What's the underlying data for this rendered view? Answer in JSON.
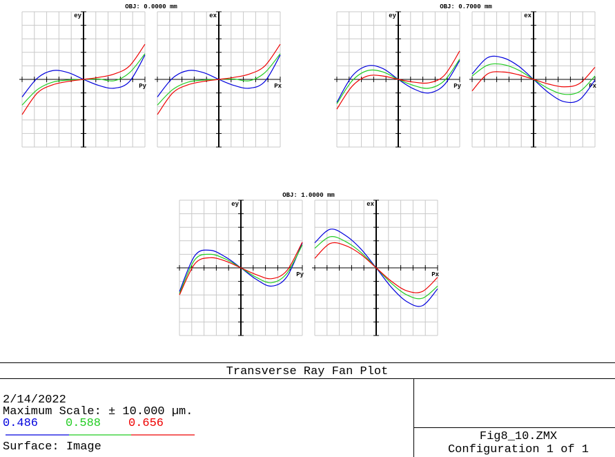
{
  "chart_data": [
    {
      "type": "line",
      "title": "OBJ: 0.0000 mm",
      "ylabel": "ey",
      "xlabel": "Py",
      "x": [
        -1,
        -0.75,
        -0.5,
        -0.25,
        0,
        0.25,
        0.5,
        0.75,
        1
      ],
      "xlim": [
        -1,
        1
      ],
      "xticks": [
        -1,
        -0.8,
        -0.6,
        -0.4,
        -0.2,
        0,
        0.2,
        0.4,
        0.6,
        0.8,
        1
      ],
      "ylim": [
        -10,
        10
      ],
      "yticks": [
        -10,
        -8,
        -6,
        -4,
        -2,
        0,
        2,
        4,
        6,
        8,
        10
      ],
      "grid": true,
      "series": [
        {
          "name": "0.486",
          "color": "#0000dd",
          "values": [
            -2.6,
            0.2,
            1.3,
            1.0,
            0,
            -0.9,
            -1.3,
            -0.3,
            3.6
          ]
        },
        {
          "name": "0.588",
          "color": "#22cc22",
          "values": [
            -3.8,
            -1.5,
            -0.4,
            -0.1,
            0,
            0.05,
            -0.2,
            1.0,
            3.8
          ]
        },
        {
          "name": "0.656",
          "color": "#ee0000",
          "values": [
            -5.2,
            -2.0,
            -0.8,
            -0.3,
            0,
            0.3,
            0.8,
            2.0,
            5.2
          ]
        }
      ]
    },
    {
      "type": "line",
      "ylabel": "ex",
      "xlabel": "Px",
      "x": [
        -1,
        -0.75,
        -0.5,
        -0.25,
        0,
        0.25,
        0.5,
        0.75,
        1
      ],
      "xlim": [
        -1,
        1
      ],
      "xticks": [
        -1,
        -0.8,
        -0.6,
        -0.4,
        -0.2,
        0,
        0.2,
        0.4,
        0.6,
        0.8,
        1
      ],
      "ylim": [
        -10,
        10
      ],
      "yticks": [
        -10,
        -8,
        -6,
        -4,
        -2,
        0,
        2,
        4,
        6,
        8,
        10
      ],
      "grid": true,
      "series": [
        {
          "name": "0.486",
          "color": "#0000dd",
          "values": [
            -2.6,
            0.2,
            1.3,
            1.0,
            0,
            -0.9,
            -1.3,
            -0.3,
            3.6
          ]
        },
        {
          "name": "0.588",
          "color": "#22cc22",
          "values": [
            -3.8,
            -1.5,
            -0.4,
            -0.1,
            0,
            0.05,
            -0.2,
            1.0,
            3.8
          ]
        },
        {
          "name": "0.656",
          "color": "#ee0000",
          "values": [
            -5.2,
            -2.0,
            -0.8,
            -0.3,
            0,
            0.3,
            0.8,
            2.0,
            5.2
          ]
        }
      ]
    },
    {
      "type": "line",
      "title": "OBJ: 0.7000 mm",
      "ylabel": "ey",
      "xlabel": "Py",
      "x": [
        -1,
        -0.75,
        -0.5,
        -0.25,
        0,
        0.25,
        0.5,
        0.75,
        1
      ],
      "xlim": [
        -1,
        1
      ],
      "xticks": [
        -1,
        -0.8,
        -0.6,
        -0.4,
        -0.2,
        0,
        0.2,
        0.4,
        0.6,
        0.8,
        1
      ],
      "ylim": [
        -10,
        10
      ],
      "yticks": [
        -10,
        -8,
        -6,
        -4,
        -2,
        0,
        2,
        4,
        6,
        8,
        10
      ],
      "grid": true,
      "series": [
        {
          "name": "0.486",
          "color": "#0000dd",
          "values": [
            -3.4,
            0.5,
            2.0,
            1.6,
            0,
            -1.4,
            -2.0,
            -0.8,
            2.8
          ]
        },
        {
          "name": "0.588",
          "color": "#22cc22",
          "values": [
            -3.6,
            -0.2,
            1.3,
            1.1,
            0,
            -0.9,
            -1.3,
            -0.2,
            3.0
          ]
        },
        {
          "name": "0.656",
          "color": "#ee0000",
          "values": [
            -4.4,
            -1.0,
            0.5,
            0.5,
            0,
            -0.4,
            -0.5,
            0.6,
            4.2
          ]
        }
      ]
    },
    {
      "type": "line",
      "ylabel": "ex",
      "xlabel": "Px",
      "x": [
        -1,
        -0.75,
        -0.5,
        -0.25,
        0,
        0.25,
        0.5,
        0.75,
        1
      ],
      "xlim": [
        -1,
        1
      ],
      "xticks": [
        -1,
        -0.8,
        -0.6,
        -0.4,
        -0.2,
        0,
        0.2,
        0.4,
        0.6,
        0.8,
        1
      ],
      "ylim": [
        -10,
        10
      ],
      "yticks": [
        -10,
        -8,
        -6,
        -4,
        -2,
        0,
        2,
        4,
        6,
        8,
        10
      ],
      "grid": true,
      "series": [
        {
          "name": "0.486",
          "color": "#0000dd",
          "values": [
            0.8,
            3.2,
            3.2,
            2.0,
            0,
            -2.0,
            -3.3,
            -3.0,
            -0.1
          ]
        },
        {
          "name": "0.588",
          "color": "#22cc22",
          "values": [
            0.5,
            2.1,
            2.2,
            1.4,
            0,
            -1.4,
            -2.2,
            -1.8,
            0.5
          ]
        },
        {
          "name": "0.656",
          "color": "#ee0000",
          "values": [
            -1.7,
            0.8,
            1.1,
            0.7,
            0,
            -0.7,
            -1.1,
            -0.6,
            1.8
          ]
        }
      ]
    },
    {
      "type": "line",
      "title": "OBJ: 1.0000 mm",
      "ylabel": "ey",
      "xlabel": "Py",
      "x": [
        -1,
        -0.75,
        -0.5,
        -0.25,
        0,
        0.25,
        0.5,
        0.75,
        1
      ],
      "xlim": [
        -1,
        1
      ],
      "xticks": [
        -1,
        -0.8,
        -0.6,
        -0.4,
        -0.2,
        0,
        0.2,
        0.4,
        0.6,
        0.8,
        1
      ],
      "ylim": [
        -10,
        10
      ],
      "yticks": [
        -10,
        -8,
        -6,
        -4,
        -2,
        0,
        2,
        4,
        6,
        8,
        10
      ],
      "grid": true,
      "series": [
        {
          "name": "0.486",
          "color": "#0000dd",
          "values": [
            -3.5,
            1.8,
            2.6,
            1.6,
            0,
            -1.7,
            -2.7,
            -1.3,
            3.7
          ]
        },
        {
          "name": "0.588",
          "color": "#22cc22",
          "values": [
            -3.8,
            1.2,
            2.0,
            1.3,
            0,
            -1.4,
            -2.2,
            -0.8,
            3.4
          ]
        },
        {
          "name": "0.656",
          "color": "#ee0000",
          "values": [
            -4.0,
            0.6,
            1.5,
            1.0,
            0,
            -1.0,
            -1.6,
            -0.4,
            3.8
          ]
        }
      ]
    },
    {
      "type": "line",
      "ylabel": "ex",
      "xlabel": "Px",
      "x": [
        -1,
        -0.75,
        -0.5,
        -0.25,
        0,
        0.25,
        0.5,
        0.75,
        1
      ],
      "xlim": [
        -1,
        1
      ],
      "xticks": [
        -1,
        -0.8,
        -0.6,
        -0.4,
        -0.2,
        0,
        0.2,
        0.4,
        0.6,
        0.8,
        1
      ],
      "ylim": [
        -10,
        10
      ],
      "yticks": [
        -10,
        -8,
        -6,
        -4,
        -2,
        0,
        2,
        4,
        6,
        8,
        10
      ],
      "grid": true,
      "series": [
        {
          "name": "0.486",
          "color": "#0000dd",
          "values": [
            3.7,
            5.7,
            4.8,
            2.8,
            0,
            -2.9,
            -5.0,
            -5.6,
            -3.1
          ]
        },
        {
          "name": "0.588",
          "color": "#22cc22",
          "values": [
            2.9,
            4.6,
            3.9,
            2.3,
            0,
            -2.3,
            -4.0,
            -4.5,
            -2.7
          ]
        },
        {
          "name": "0.656",
          "color": "#ee0000",
          "values": [
            1.4,
            3.6,
            3.3,
            2.0,
            0,
            -2.0,
            -3.4,
            -3.5,
            -1.4
          ]
        }
      ]
    }
  ],
  "footer": {
    "title": "Transverse Ray Fan Plot",
    "date": "2/14/2022",
    "scale": "Maximum Scale: ± 10.000 µm.",
    "surface": "Surface: Image",
    "file": "Fig8_10.ZMX",
    "config": "Configuration 1 of 1"
  }
}
